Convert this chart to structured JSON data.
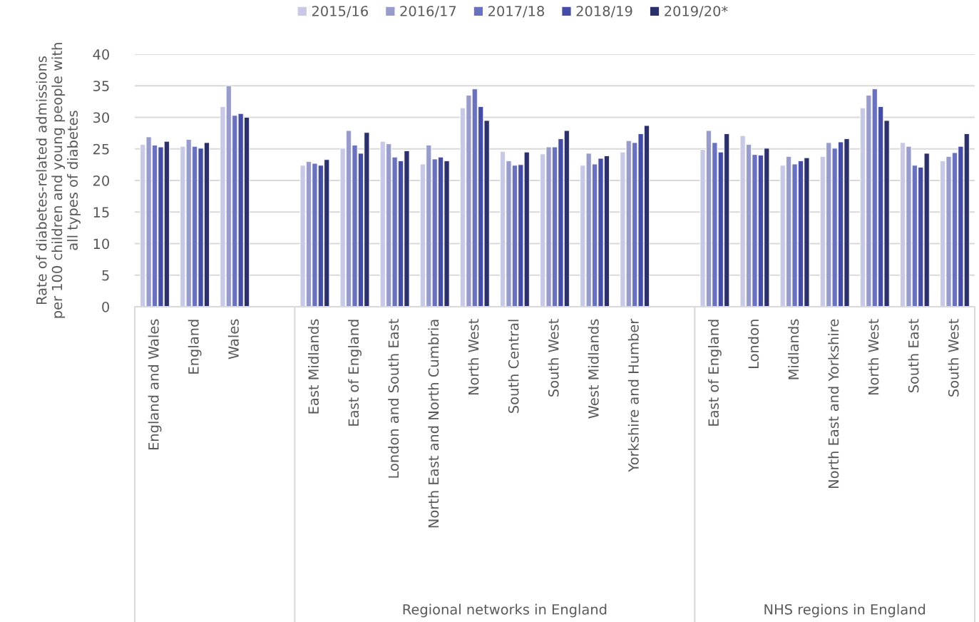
{
  "chart_data": {
    "type": "bar",
    "categories": [
      "England and Wales",
      "England",
      "Wales",
      null,
      "East Midlands",
      "East of England",
      "London and South East",
      "North East and North Cumbria",
      "North West",
      "South Central",
      "South West",
      "West Midlands",
      "Yorkshire and Humber",
      null,
      "East of England",
      "London",
      "Midlands",
      "North East and Yorkshire",
      "North West",
      "South East",
      "South West"
    ],
    "series": [
      {
        "name": "2015/16",
        "color": "#c8c9e6",
        "values": [
          25.7,
          25.4,
          31.7,
          null,
          22.4,
          25.1,
          26.2,
          22.6,
          31.5,
          24.6,
          24.2,
          22.4,
          24.5,
          null,
          24.9,
          27.1,
          22.4,
          23.8,
          31.5,
          26.0,
          23.1
        ]
      },
      {
        "name": "2016/17",
        "color": "#989ccb",
        "values": [
          26.9,
          26.5,
          35.0,
          null,
          23.0,
          27.9,
          25.8,
          25.6,
          33.5,
          23.1,
          25.3,
          24.3,
          26.3,
          null,
          27.9,
          25.7,
          23.8,
          26.0,
          33.5,
          25.4,
          23.8
        ]
      },
      {
        "name": "2017/18",
        "color": "#6a72c0",
        "values": [
          25.6,
          25.4,
          30.3,
          null,
          22.7,
          25.6,
          23.7,
          23.4,
          34.5,
          22.4,
          25.3,
          22.6,
          26.0,
          null,
          26.0,
          24.1,
          22.6,
          25.1,
          34.5,
          22.4,
          24.4
        ]
      },
      {
        "name": "2018/19",
        "color": "#444ca3",
        "values": [
          25.3,
          25.1,
          30.6,
          null,
          22.4,
          24.3,
          23.1,
          23.7,
          31.7,
          22.5,
          26.6,
          23.5,
          27.4,
          null,
          24.5,
          24.0,
          23.1,
          26.1,
          31.7,
          22.1,
          25.4
        ]
      },
      {
        "name": "2019/20*",
        "color": "#2c306a",
        "values": [
          26.2,
          26.0,
          30.0,
          null,
          23.3,
          27.6,
          24.7,
          23.1,
          29.5,
          24.5,
          27.9,
          23.9,
          28.7,
          null,
          27.4,
          25.1,
          23.6,
          26.6,
          29.5,
          24.3,
          27.4
        ]
      }
    ],
    "ylabel": "Rate of diabetes-related admissions\nper 100 children and young people with\nall types of diabetes",
    "ylim": [
      0,
      40
    ],
    "yticks": [
      0,
      5,
      10,
      15,
      20,
      25,
      30,
      35,
      40
    ],
    "grid": "y",
    "legend": "top",
    "annotations": [
      "Regional networks in England",
      "NHS regions in England"
    ]
  }
}
